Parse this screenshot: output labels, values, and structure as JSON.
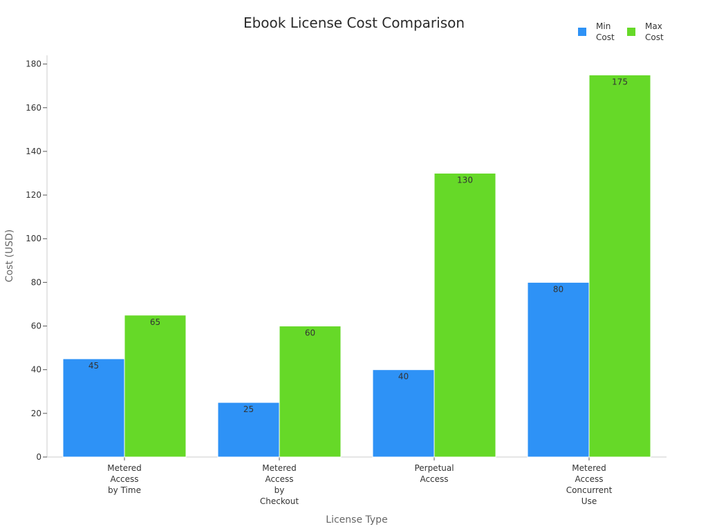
{
  "chart_data": {
    "type": "bar",
    "title": "Ebook License Cost Comparison",
    "xlabel": "License Type",
    "ylabel": "Cost (USD)",
    "categories": [
      [
        "Metered",
        "Access",
        "by Time"
      ],
      [
        "Metered",
        "Access",
        "by",
        "Checkout"
      ],
      [
        "Perpetual",
        "Access"
      ],
      [
        "Metered",
        "Access",
        "Concurrent",
        "Use"
      ]
    ],
    "series": [
      {
        "name": [
          "Min",
          "Cost"
        ],
        "color": "#2e92f6",
        "values": [
          45,
          25,
          40,
          80
        ]
      },
      {
        "name": [
          "Max",
          "Cost"
        ],
        "color": "#66d928",
        "values": [
          65,
          60,
          130,
          175
        ]
      }
    ],
    "yticks": [
      0,
      20,
      40,
      60,
      80,
      100,
      120,
      140,
      160,
      180
    ],
    "ylim": [
      0,
      184
    ],
    "grid": false,
    "legend": "top-right"
  }
}
